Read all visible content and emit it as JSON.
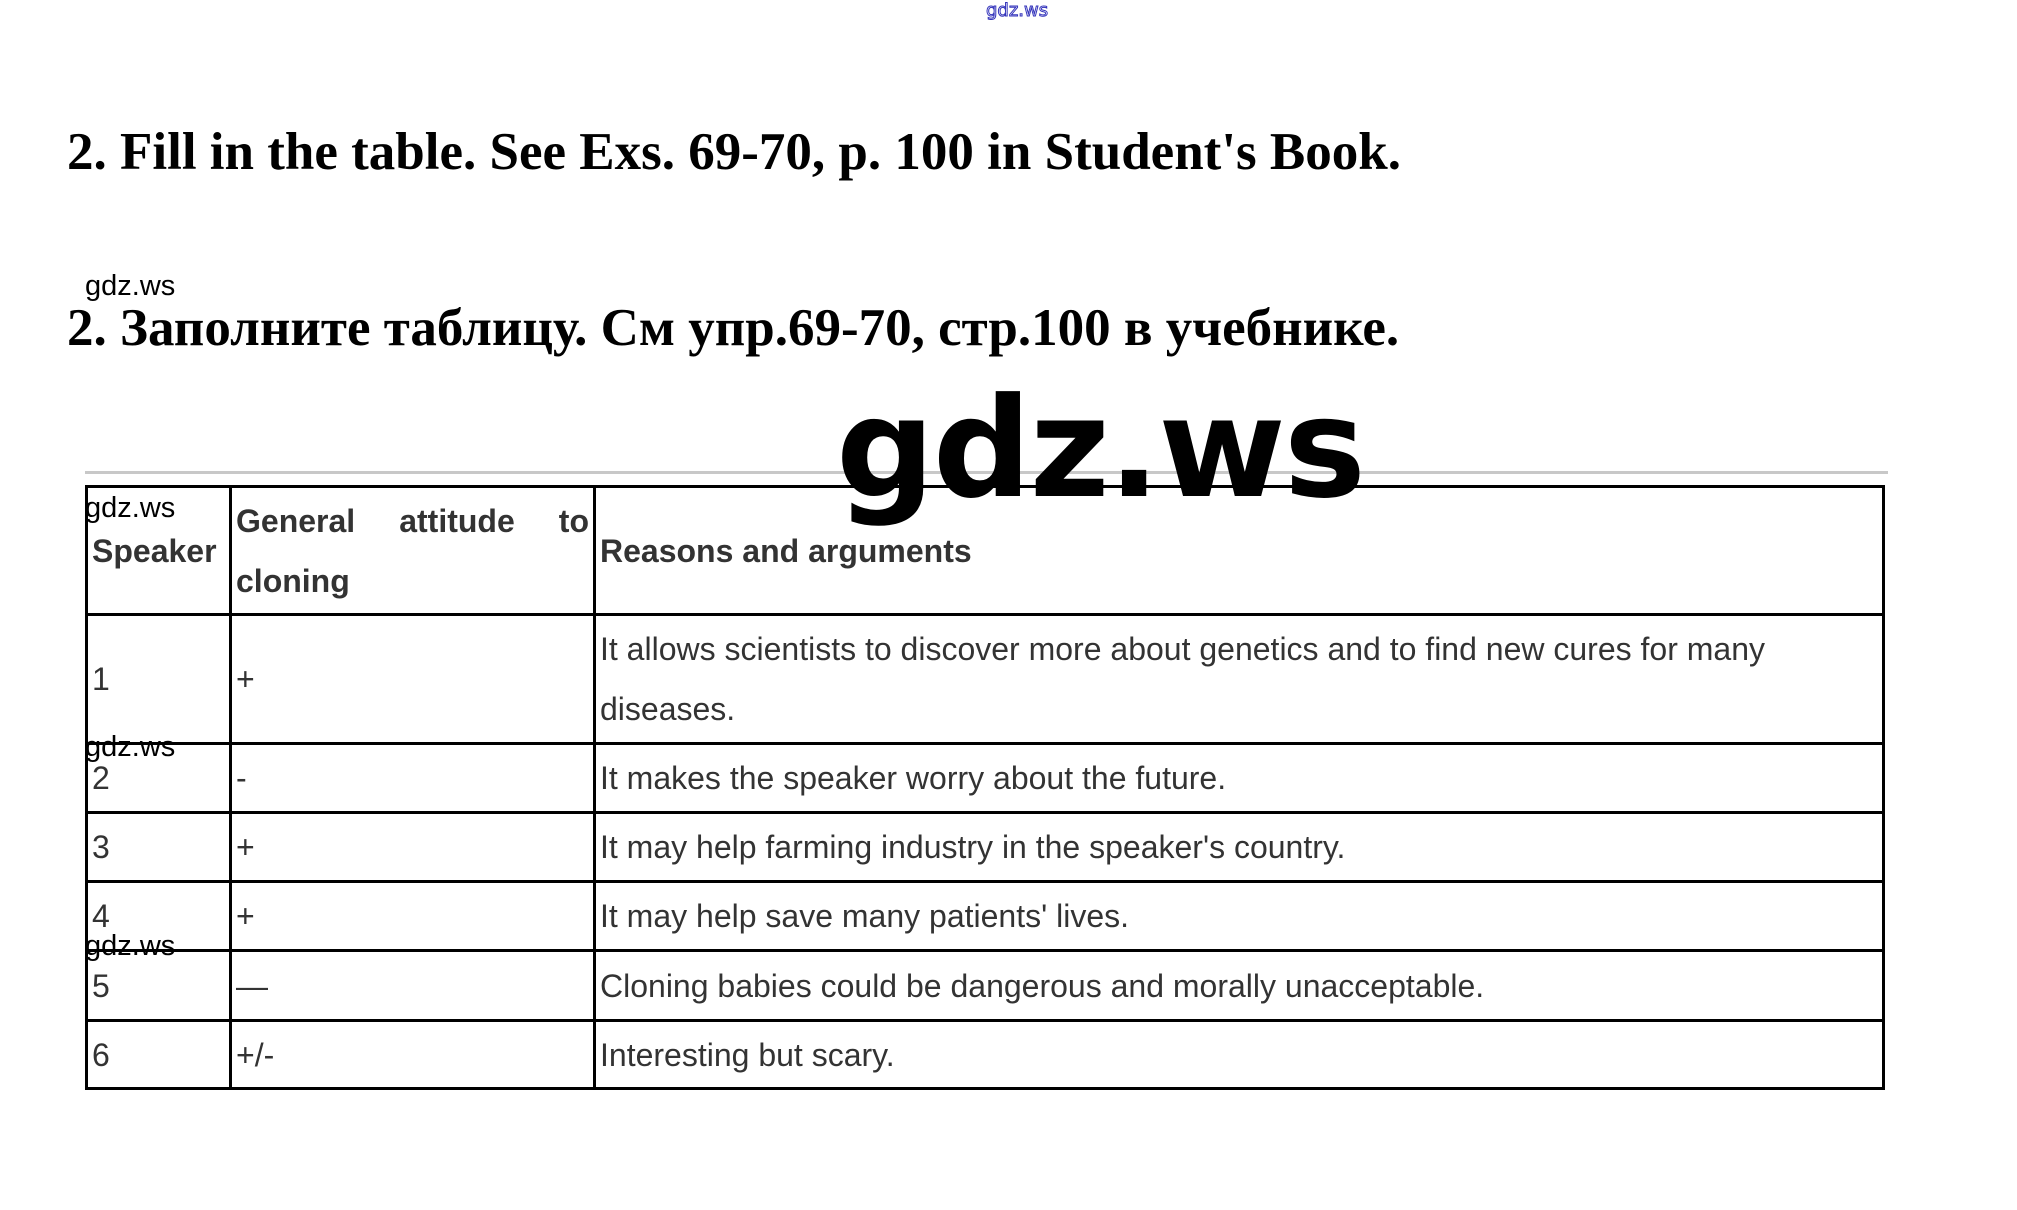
{
  "watermarks": {
    "top": "gdz.ws",
    "small": "gdz.ws",
    "big": "gdz.ws"
  },
  "heading_en": "2. Fill in the table. See Exs. 69-70, p. 100 in Student's Book.",
  "heading_ru": "2. Заполните таблицу. См упр.69-70, стр.100 в учебнике.",
  "table": {
    "headers": [
      "Speaker",
      "General attitude to cloning",
      "Reasons and arguments"
    ],
    "rows": [
      [
        "1",
        "+",
        "It allows scientists to discover more about genetics and to find new cures for many diseases."
      ],
      [
        "2",
        "-",
        "It makes the speaker worry about the future."
      ],
      [
        "3",
        "+",
        "It may help farming industry in the speaker's country."
      ],
      [
        "4",
        "+",
        "It may help save many patients' lives."
      ],
      [
        "5",
        "—",
        "Cloning babies could be dangerous and morally unacceptable."
      ],
      [
        "6",
        "+/-",
        "Interesting but scary."
      ]
    ]
  }
}
